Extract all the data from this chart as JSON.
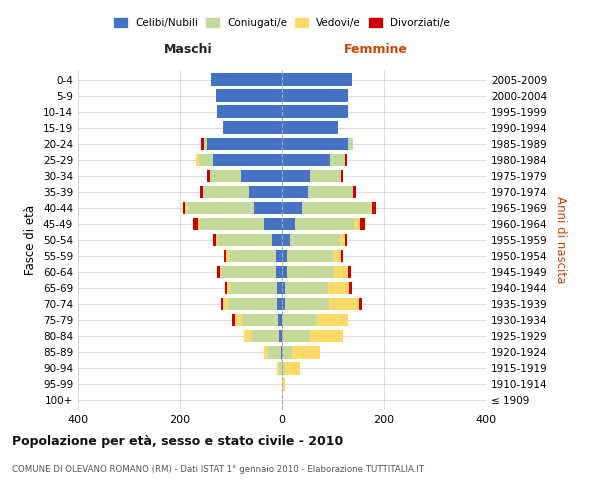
{
  "age_groups": [
    "100+",
    "95-99",
    "90-94",
    "85-89",
    "80-84",
    "75-79",
    "70-74",
    "65-69",
    "60-64",
    "55-59",
    "50-54",
    "45-49",
    "40-44",
    "35-39",
    "30-34",
    "25-29",
    "20-24",
    "15-19",
    "10-14",
    "5-9",
    "0-4"
  ],
  "birth_years": [
    "≤ 1909",
    "1910-1914",
    "1915-1919",
    "1920-1924",
    "1925-1929",
    "1930-1934",
    "1935-1939",
    "1940-1944",
    "1945-1949",
    "1950-1954",
    "1955-1959",
    "1960-1964",
    "1965-1969",
    "1970-1974",
    "1975-1979",
    "1980-1984",
    "1985-1989",
    "1990-1994",
    "1995-1999",
    "2000-2004",
    "2005-2009"
  ],
  "male_celibi": [
    0,
    0,
    0,
    2,
    5,
    8,
    10,
    10,
    12,
    12,
    20,
    35,
    55,
    65,
    80,
    135,
    148,
    115,
    128,
    130,
    140
  ],
  "male_coniugati": [
    0,
    0,
    5,
    25,
    55,
    70,
    95,
    92,
    105,
    92,
    105,
    125,
    130,
    90,
    62,
    28,
    5,
    0,
    0,
    0,
    0
  ],
  "male_vedovi": [
    0,
    0,
    5,
    8,
    15,
    15,
    10,
    5,
    5,
    5,
    5,
    5,
    5,
    0,
    0,
    5,
    0,
    0,
    0,
    0,
    0
  ],
  "male_divorziati": [
    0,
    0,
    0,
    0,
    0,
    5,
    5,
    5,
    5,
    5,
    5,
    10,
    5,
    5,
    5,
    0,
    5,
    0,
    0,
    0,
    0
  ],
  "female_nubili": [
    0,
    0,
    0,
    0,
    0,
    0,
    5,
    5,
    10,
    10,
    15,
    25,
    40,
    50,
    55,
    95,
    130,
    110,
    130,
    130,
    138
  ],
  "female_coniugate": [
    0,
    0,
    5,
    20,
    55,
    68,
    88,
    85,
    92,
    90,
    98,
    118,
    132,
    90,
    60,
    28,
    10,
    0,
    0,
    0,
    0
  ],
  "female_vedove": [
    0,
    5,
    30,
    55,
    65,
    62,
    58,
    42,
    28,
    15,
    10,
    10,
    5,
    0,
    0,
    0,
    0,
    0,
    0,
    0,
    0
  ],
  "female_divorziate": [
    0,
    0,
    0,
    0,
    0,
    0,
    5,
    5,
    5,
    5,
    5,
    10,
    8,
    5,
    5,
    5,
    0,
    0,
    0,
    0,
    0
  ],
  "color_celibi": "#4472c4",
  "color_coniugati": "#c5d99b",
  "color_vedovi": "#ffd966",
  "color_divorziati": "#cc0000",
  "bg_color": "#ffffff",
  "grid_color": "#cccccc",
  "title": "Popolazione per età, sesso e stato civile - 2010",
  "subtitle": "COMUNE DI OLEVANO ROMANO (RM) - Dati ISTAT 1° gennaio 2010 - Elaborazione TUTTITALIA.IT",
  "maschi_label": "Maschi",
  "femmine_label": "Femmine",
  "ylabel_left": "Fasce di età",
  "ylabel_right": "Anni di nascita",
  "xlim": 400
}
